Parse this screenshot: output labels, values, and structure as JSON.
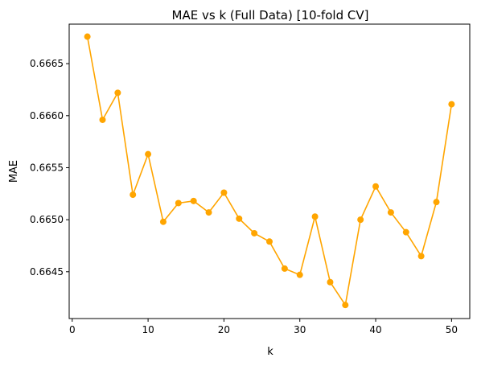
{
  "chart_data": {
    "type": "line",
    "title": "MAE vs k (Full Data) [10-fold CV]",
    "xlabel": "k",
    "ylabel": "MAE",
    "xlim": [
      -0.4,
      52.4
    ],
    "ylim": [
      0.66405,
      0.66688
    ],
    "xticks": [
      0,
      10,
      20,
      30,
      40,
      50
    ],
    "yticks": [
      0.6645,
      0.665,
      0.6655,
      0.666,
      0.6665
    ],
    "ytick_labels": [
      "0.6645",
      "0.6650",
      "0.6655",
      "0.6660",
      "0.6665"
    ],
    "xtick_labels": [
      "0",
      "10",
      "20",
      "30",
      "40",
      "50"
    ],
    "grid": false,
    "color": "#ffa500",
    "marker": "circle",
    "series": [
      {
        "x": [
          2,
          4,
          6,
          8,
          10,
          12,
          14,
          16,
          18,
          20,
          22,
          24,
          26,
          28,
          30,
          32,
          34,
          36,
          38,
          40,
          42,
          44,
          46,
          48,
          50
        ],
        "values": [
          0.66676,
          0.66596,
          0.66622,
          0.66524,
          0.66563,
          0.66498,
          0.66516,
          0.66518,
          0.66507,
          0.66526,
          0.66501,
          0.66487,
          0.66479,
          0.66453,
          0.66447,
          0.66503,
          0.6644,
          0.66418,
          0.665,
          0.66532,
          0.66507,
          0.66488,
          0.66465,
          0.66517,
          0.66611
        ]
      }
    ]
  }
}
